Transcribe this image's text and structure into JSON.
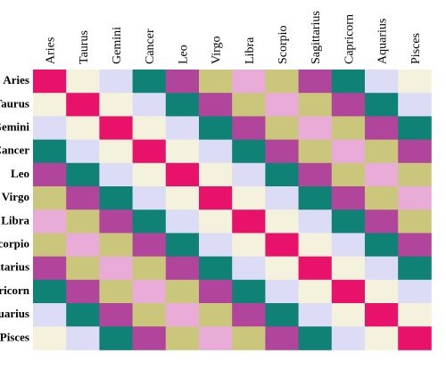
{
  "columns": [
    "Aries",
    "Taurus",
    "Gemini",
    "Cancer",
    "Leo",
    "Virgo",
    "Libra",
    "Scorpio",
    "Sagittarius",
    "Capricorn",
    "Aquarius",
    "Pisces"
  ],
  "rows": [
    "Aries",
    "Taurus",
    "Gemini",
    "Cancer",
    "Leo",
    "Virgo",
    "Libra",
    "Scorpio",
    "Sagittarius",
    "Capricorn",
    "Aquarius",
    "Pisces"
  ],
  "cells": [
    [
      "#e8126b",
      "#f4f2dc",
      "#dcdcf6",
      "#0f8275",
      "#b1459b",
      "#cac77c",
      "#e9abd7",
      "#cac77c",
      "#b1459b",
      "#0f8275",
      "#dcdcf6",
      "#f4f2dc"
    ],
    [
      "#f4f2dc",
      "#e8126b",
      "#f4f2dc",
      "#dcdcf6",
      "#0f8275",
      "#b1459b",
      "#cac77c",
      "#e9abd7",
      "#cac77c",
      "#b1459b",
      "#0f8275",
      "#dcdcf6"
    ],
    [
      "#dcdcf6",
      "#f4f2dc",
      "#e8126b",
      "#f4f2dc",
      "#dcdcf6",
      "#0f8275",
      "#b1459b",
      "#cac77c",
      "#e9abd7",
      "#cac77c",
      "#b1459b",
      "#0f8275"
    ],
    [
      "#0f8275",
      "#dcdcf6",
      "#f4f2dc",
      "#e8126b",
      "#f4f2dc",
      "#dcdcf6",
      "#0f8275",
      "#b1459b",
      "#cac77c",
      "#e9abd7",
      "#cac77c",
      "#b1459b"
    ],
    [
      "#b1459b",
      "#0f8275",
      "#dcdcf6",
      "#f4f2dc",
      "#e8126b",
      "#f4f2dc",
      "#dcdcf6",
      "#0f8275",
      "#b1459b",
      "#cac77c",
      "#e9abd7",
      "#cac77c"
    ],
    [
      "#cac77c",
      "#b1459b",
      "#0f8275",
      "#dcdcf6",
      "#f4f2dc",
      "#e8126b",
      "#f4f2dc",
      "#dcdcf6",
      "#0f8275",
      "#b1459b",
      "#cac77c",
      "#e9abd7"
    ],
    [
      "#e9abd7",
      "#cac77c",
      "#b1459b",
      "#0f8275",
      "#dcdcf6",
      "#f4f2dc",
      "#e8126b",
      "#f4f2dc",
      "#dcdcf6",
      "#0f8275",
      "#b1459b",
      "#cac77c"
    ],
    [
      "#cac77c",
      "#e9abd7",
      "#cac77c",
      "#b1459b",
      "#0f8275",
      "#dcdcf6",
      "#f4f2dc",
      "#e8126b",
      "#f4f2dc",
      "#dcdcf6",
      "#0f8275",
      "#b1459b"
    ],
    [
      "#b1459b",
      "#cac77c",
      "#e9abd7",
      "#cac77c",
      "#b1459b",
      "#0f8275",
      "#dcdcf6",
      "#f4f2dc",
      "#e8126b",
      "#f4f2dc",
      "#dcdcf6",
      "#0f8275"
    ],
    [
      "#0f8275",
      "#b1459b",
      "#cac77c",
      "#e9abd7",
      "#cac77c",
      "#b1459b",
      "#0f8275",
      "#dcdcf6",
      "#f4f2dc",
      "#e8126b",
      "#f4f2dc",
      "#dcdcf6"
    ],
    [
      "#dcdcf6",
      "#0f8275",
      "#b1459b",
      "#cac77c",
      "#e9abd7",
      "#cac77c",
      "#b1459b",
      "#0f8275",
      "#dcdcf6",
      "#f4f2dc",
      "#e8126b",
      "#f4f2dc"
    ],
    [
      "#f4f2dc",
      "#dcdcf6",
      "#0f8275",
      "#b1459b",
      "#cac77c",
      "#e9abd7",
      "#cac77c",
      "#b1459b",
      "#0f8275",
      "#dcdcf6",
      "#f4f2dc",
      "#e8126b"
    ]
  ]
}
